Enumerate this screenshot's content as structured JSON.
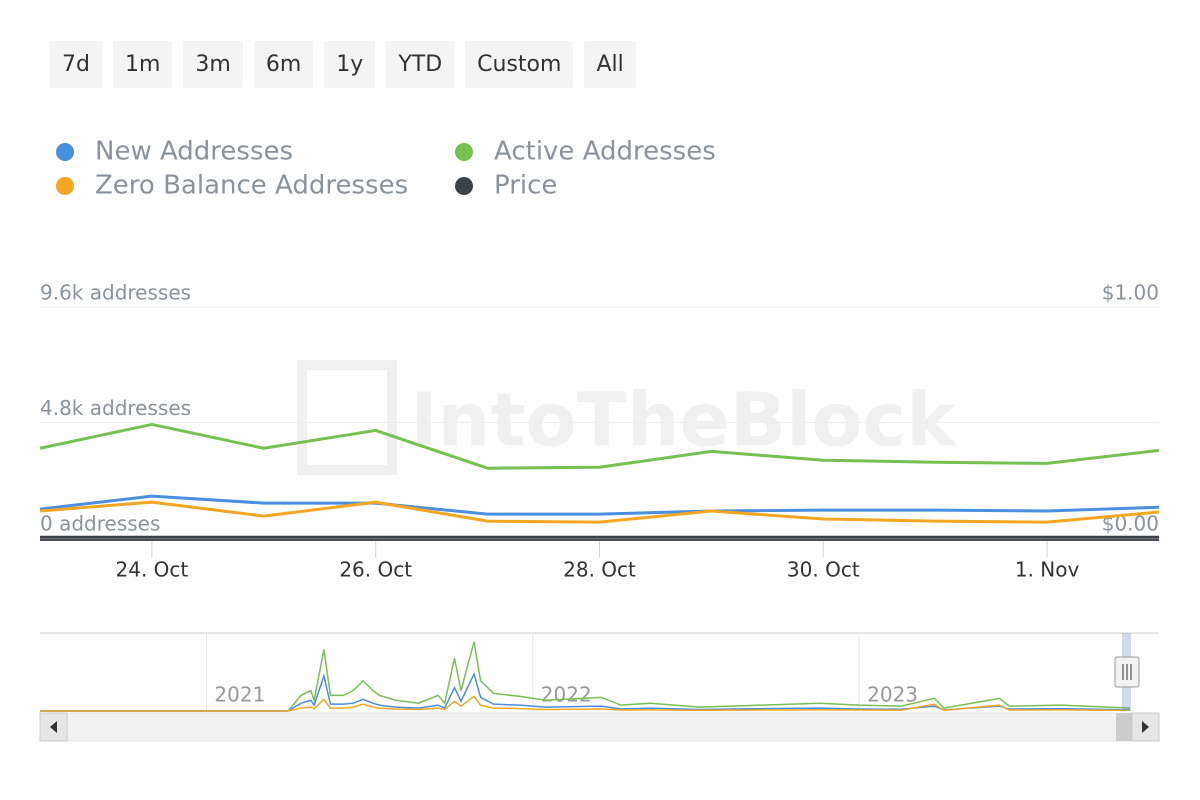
{
  "range_buttons": [
    "7d",
    "1m",
    "3m",
    "6m",
    "1y",
    "YTD",
    "Custom",
    "All"
  ],
  "chart_data": {
    "type": "line",
    "watermark": "IntoTheBlock",
    "categories": [
      null,
      "24. Oct",
      null,
      "26. Oct",
      null,
      "28. Oct",
      null,
      "30. Oct",
      null,
      "1. Nov",
      null
    ],
    "series": [
      {
        "name": "New Addresses",
        "color": "#4a8fe0",
        "values": [
          1200,
          1740,
          1450,
          1450,
          990,
          990,
          1120,
          1160,
          1160,
          1120,
          1280
        ]
      },
      {
        "name": "Active Addresses",
        "color": "#77c052",
        "values": [
          3730,
          4720,
          3730,
          4470,
          2900,
          2940,
          3600,
          3230,
          3150,
          3100,
          3640
        ]
      },
      {
        "name": "Zero Balance Addresses",
        "color": "#f5a623",
        "values": [
          1120,
          1490,
          910,
          1490,
          700,
          660,
          1120,
          790,
          700,
          660,
          1080
        ]
      },
      {
        "name": "Price",
        "color": "#3c4148",
        "axis": "y2",
        "values": [
          0.003,
          0.003,
          0.003,
          0.003,
          0.003,
          0.003,
          0.003,
          0.003,
          0.003,
          0.003,
          0.003
        ]
      }
    ],
    "ylim": [
      0,
      9600
    ],
    "yticks": [
      {
        "value": 0,
        "label": "0 addresses"
      },
      {
        "value": 4800,
        "label": "4.8k addresses"
      },
      {
        "value": 9600,
        "label": "9.6k addresses"
      }
    ],
    "y2lim": [
      0,
      1
    ],
    "y2ticks": [
      {
        "value": 0,
        "label": "$0.00"
      },
      {
        "value": 1,
        "label": "$1.00"
      }
    ],
    "grid": true,
    "legend": "top-left",
    "navigator": {
      "x": [
        2020.49,
        2021.25,
        2021.29,
        2021.32,
        2021.33,
        2021.36,
        2021.38,
        2021.42,
        2021.45,
        2021.48,
        2021.51,
        2021.53,
        2021.58,
        2021.65,
        2021.71,
        2021.73,
        2021.76,
        2021.78,
        2021.82,
        2021.84,
        2021.88,
        2021.96,
        2022.04,
        2022.21,
        2022.27,
        2022.36,
        2022.51,
        2022.7,
        2022.88,
        2023.0,
        2023.13,
        2023.23,
        2023.26,
        2023.43,
        2023.46,
        2023.62,
        2023.83
      ],
      "xlim": [
        2020.49,
        2023.83
      ],
      "xticks": [
        2021,
        2022,
        2023
      ],
      "ylim": [
        0,
        40000
      ],
      "series": [
        {
          "color": "#77c052",
          "values": [
            0,
            0,
            8000,
            10500,
            5500,
            31500,
            8000,
            8000,
            10500,
            15500,
            10500,
            8000,
            5500,
            4000,
            8000,
            4000,
            27000,
            10500,
            35500,
            15500,
            9000,
            7500,
            5500,
            7000,
            3000,
            4000,
            2000,
            3000,
            4000,
            3000,
            2500,
            6500,
            1500,
            6500,
            2500,
            3000,
            1500
          ]
        },
        {
          "color": "#4a8fe0",
          "values": [
            0,
            0,
            4000,
            5500,
            3000,
            18000,
            3500,
            3500,
            4000,
            6000,
            4000,
            3000,
            2000,
            1500,
            3000,
            1500,
            12000,
            5000,
            19000,
            7000,
            3500,
            3000,
            2000,
            2500,
            1000,
            1500,
            800,
            1200,
            1500,
            1000,
            900,
            2500,
            600,
            2500,
            1000,
            1200,
            600
          ]
        },
        {
          "color": "#f5a623",
          "values": [
            0,
            0,
            1500,
            2000,
            1200,
            6000,
            1500,
            1500,
            2000,
            3500,
            2000,
            1500,
            1000,
            800,
            1500,
            800,
            5000,
            2500,
            7500,
            3000,
            1500,
            1200,
            800,
            1000,
            500,
            600,
            400,
            500,
            600,
            500,
            400,
            3500,
            300,
            3000,
            500,
            600,
            300
          ]
        }
      ]
    }
  }
}
